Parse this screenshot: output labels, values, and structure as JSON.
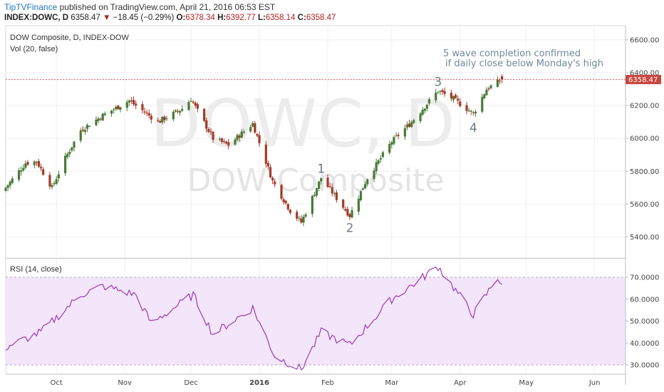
{
  "header": {
    "publisher": "TipTVFinance",
    "published_text": "published on TradingView.com, April 21, 2016 06:53 EST",
    "symbol": "INDEX:DOWC, D",
    "last": "6358.47",
    "change": "−18.45 (−0.29%)",
    "open_label": "O:",
    "open": "6378.34",
    "high_label": "H:",
    "high": "6392.77",
    "low_label": "L:",
    "low": "6358.14",
    "close_label": "C:",
    "close": "6358.47"
  },
  "main_panel": {
    "title": "DOW Composite, D, INDEX-DOW",
    "vol_label": "Vol (20, false)",
    "watermark_symbol": "DOWC, D",
    "watermark_name": "DOW Composite",
    "annotation_line1": "5 wave completion confirmed",
    "annotation_line2": "if daily close below Monday's high",
    "price_tag": "6358.47"
  },
  "rsi_panel": {
    "title": "RSI (14, close)"
  },
  "colors": {
    "up": "#4a7a3a",
    "down": "#a33a2a",
    "rsi_line": "#9b38b8",
    "rsi_band": "#f3e6fb",
    "price_line": "#e05050",
    "price_tag": "#c9463d"
  },
  "chart_data": [
    {
      "type": "candlestick",
      "title": "DOW Composite, D, INDEX-DOW",
      "x_ticks": [
        "Oct",
        "Nov",
        "Dec",
        "2016",
        "Feb",
        "Mar",
        "Apr",
        "May",
        "Jun"
      ],
      "y_ticks": [
        "5400.00",
        "5600.00",
        "5800.00",
        "6000.00",
        "6200.00",
        "6400.00",
        "6600.00"
      ],
      "ylim": [
        5300,
        6660
      ],
      "last_price": 6358.47,
      "x_range": [
        "2015-09-08",
        "2016-06-15"
      ],
      "waves": [
        {
          "label": "1",
          "date": "2016-01-29",
          "price": 5790
        },
        {
          "label": "2",
          "date": "2016-02-11",
          "price": 5430
        },
        {
          "label": "3",
          "date": "2016-03-22",
          "price": 6320
        },
        {
          "label": "4",
          "date": "2016-04-07",
          "price": 6040
        }
      ],
      "key_closes": [
        {
          "date": "2015-09-08",
          "close": 5700
        },
        {
          "date": "2015-09-17",
          "close": 5850
        },
        {
          "date": "2015-09-22",
          "close": 5860
        },
        {
          "date": "2015-09-29",
          "close": 5700
        },
        {
          "date": "2015-10-05",
          "close": 5880
        },
        {
          "date": "2015-10-12",
          "close": 6050
        },
        {
          "date": "2015-10-22",
          "close": 6140
        },
        {
          "date": "2015-11-03",
          "close": 6230
        },
        {
          "date": "2015-11-16",
          "close": 6100
        },
        {
          "date": "2015-11-27",
          "close": 6180
        },
        {
          "date": "2015-12-01",
          "close": 6240
        },
        {
          "date": "2015-12-11",
          "close": 6000
        },
        {
          "date": "2015-12-18",
          "close": 5960
        },
        {
          "date": "2015-12-29",
          "close": 6090
        },
        {
          "date": "2016-01-07",
          "close": 5740
        },
        {
          "date": "2016-01-15",
          "close": 5560
        },
        {
          "date": "2016-01-20",
          "close": 5490
        },
        {
          "date": "2016-01-29",
          "close": 5760
        },
        {
          "date": "2016-02-11",
          "close": 5530
        },
        {
          "date": "2016-02-19",
          "close": 5760
        },
        {
          "date": "2016-03-01",
          "close": 5980
        },
        {
          "date": "2016-03-10",
          "close": 6100
        },
        {
          "date": "2016-03-22",
          "close": 6290
        },
        {
          "date": "2016-03-29",
          "close": 6240
        },
        {
          "date": "2016-04-07",
          "close": 6150
        },
        {
          "date": "2016-04-13",
          "close": 6300
        },
        {
          "date": "2016-04-20",
          "close": 6358.47
        }
      ]
    },
    {
      "type": "line",
      "title": "RSI (14, close)",
      "y_ticks": [
        "30.0000",
        "40.0000",
        "50.0000",
        "60.0000",
        "70.0000"
      ],
      "ylim": [
        27,
        75
      ],
      "band": [
        30,
        70
      ],
      "key_values": [
        {
          "date": "2015-09-08",
          "value": 38
        },
        {
          "date": "2015-09-24",
          "value": 45
        },
        {
          "date": "2015-10-12",
          "value": 62
        },
        {
          "date": "2015-10-22",
          "value": 66
        },
        {
          "date": "2015-11-06",
          "value": 62
        },
        {
          "date": "2015-11-13",
          "value": 49
        },
        {
          "date": "2015-12-02",
          "value": 62
        },
        {
          "date": "2015-12-11",
          "value": 44
        },
        {
          "date": "2015-12-29",
          "value": 56
        },
        {
          "date": "2016-01-08",
          "value": 34
        },
        {
          "date": "2016-01-20",
          "value": 28
        },
        {
          "date": "2016-01-29",
          "value": 45
        },
        {
          "date": "2016-02-11",
          "value": 39
        },
        {
          "date": "2016-03-01",
          "value": 60
        },
        {
          "date": "2016-03-18",
          "value": 72
        },
        {
          "date": "2016-03-22",
          "value": 75
        },
        {
          "date": "2016-04-07",
          "value": 53
        },
        {
          "date": "2016-04-18",
          "value": 70
        },
        {
          "date": "2016-04-20",
          "value": 67
        }
      ]
    }
  ]
}
